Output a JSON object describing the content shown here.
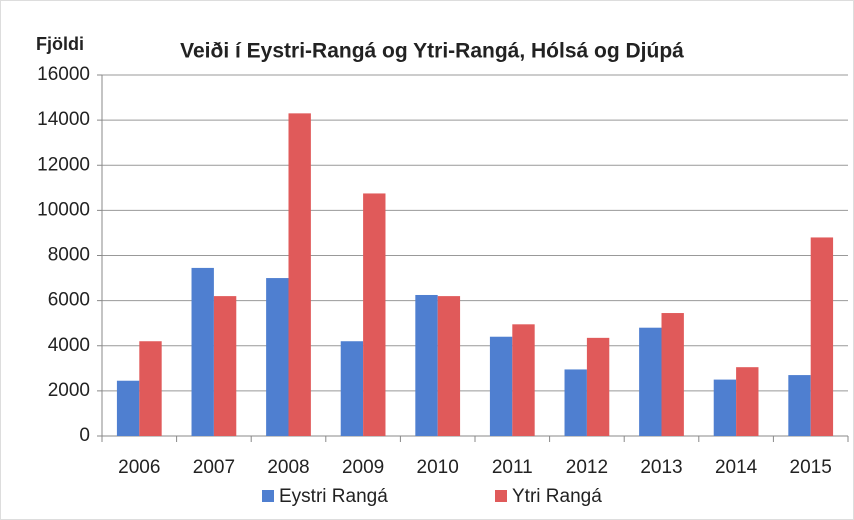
{
  "chart_data": {
    "type": "bar",
    "title": "Veiði í Eystri-Rangá og Ytri-Rangá, Hólsá og Djúpá",
    "y_label": "Fjöldi",
    "categories": [
      "2006",
      "2007",
      "2008",
      "2009",
      "2010",
      "2011",
      "2012",
      "2013",
      "2014",
      "2015"
    ],
    "series": [
      {
        "name": "Eystri Rangá",
        "color": "#4f7fd0",
        "values": [
          2450,
          7450,
          7000,
          4200,
          6250,
          4400,
          2950,
          4800,
          2500,
          2700
        ]
      },
      {
        "name": "Ytri Rangá",
        "color": "#e05a5a",
        "values": [
          4200,
          6200,
          14300,
          10750,
          6200,
          4950,
          4350,
          5450,
          3050,
          8800
        ]
      }
    ],
    "ylim": [
      0,
      16000
    ],
    "yticks": [
      0,
      2000,
      4000,
      6000,
      8000,
      10000,
      12000,
      14000,
      16000
    ],
    "grid": true,
    "legend": "bottom"
  }
}
